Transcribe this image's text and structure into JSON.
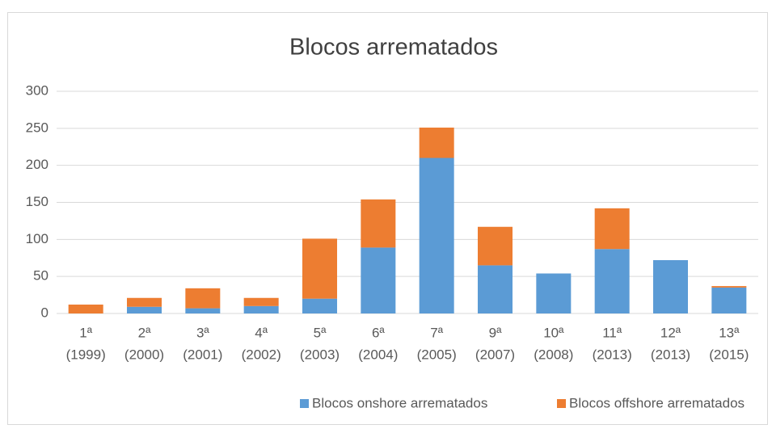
{
  "chart_data": {
    "type": "stacked_bar",
    "title": "Blocos arrematados",
    "categories": [
      [
        "1ª",
        "(1999)"
      ],
      [
        "2ª",
        "(2000)"
      ],
      [
        "3ª",
        "(2001)"
      ],
      [
        "4ª",
        "(2002)"
      ],
      [
        "5ª",
        "(2003)"
      ],
      [
        "6ª",
        "(2004)"
      ],
      [
        "7ª",
        "(2005)"
      ],
      [
        "9ª",
        "(2007)"
      ],
      [
        "10ª",
        "(2008)"
      ],
      [
        "11ª",
        "(2013)"
      ],
      [
        "12ª",
        "(2013)"
      ],
      [
        "13ª",
        "(2015)"
      ]
    ],
    "series": [
      {
        "name": "Blocos onshore arrematados",
        "color": "#5b9bd5",
        "values": [
          0,
          9,
          7,
          10,
          20,
          89,
          210,
          65,
          54,
          87,
          72,
          35
        ]
      },
      {
        "name": "Blocos offshore arrematados",
        "color": "#ed7d31",
        "values": [
          12,
          12,
          27,
          11,
          81,
          65,
          41,
          52,
          0,
          55,
          0,
          2
        ]
      }
    ],
    "ylim": [
      0,
      300
    ],
    "yticks": [
      0,
      50,
      100,
      150,
      200,
      250,
      300
    ],
    "grid": true,
    "legend": "bottom"
  }
}
